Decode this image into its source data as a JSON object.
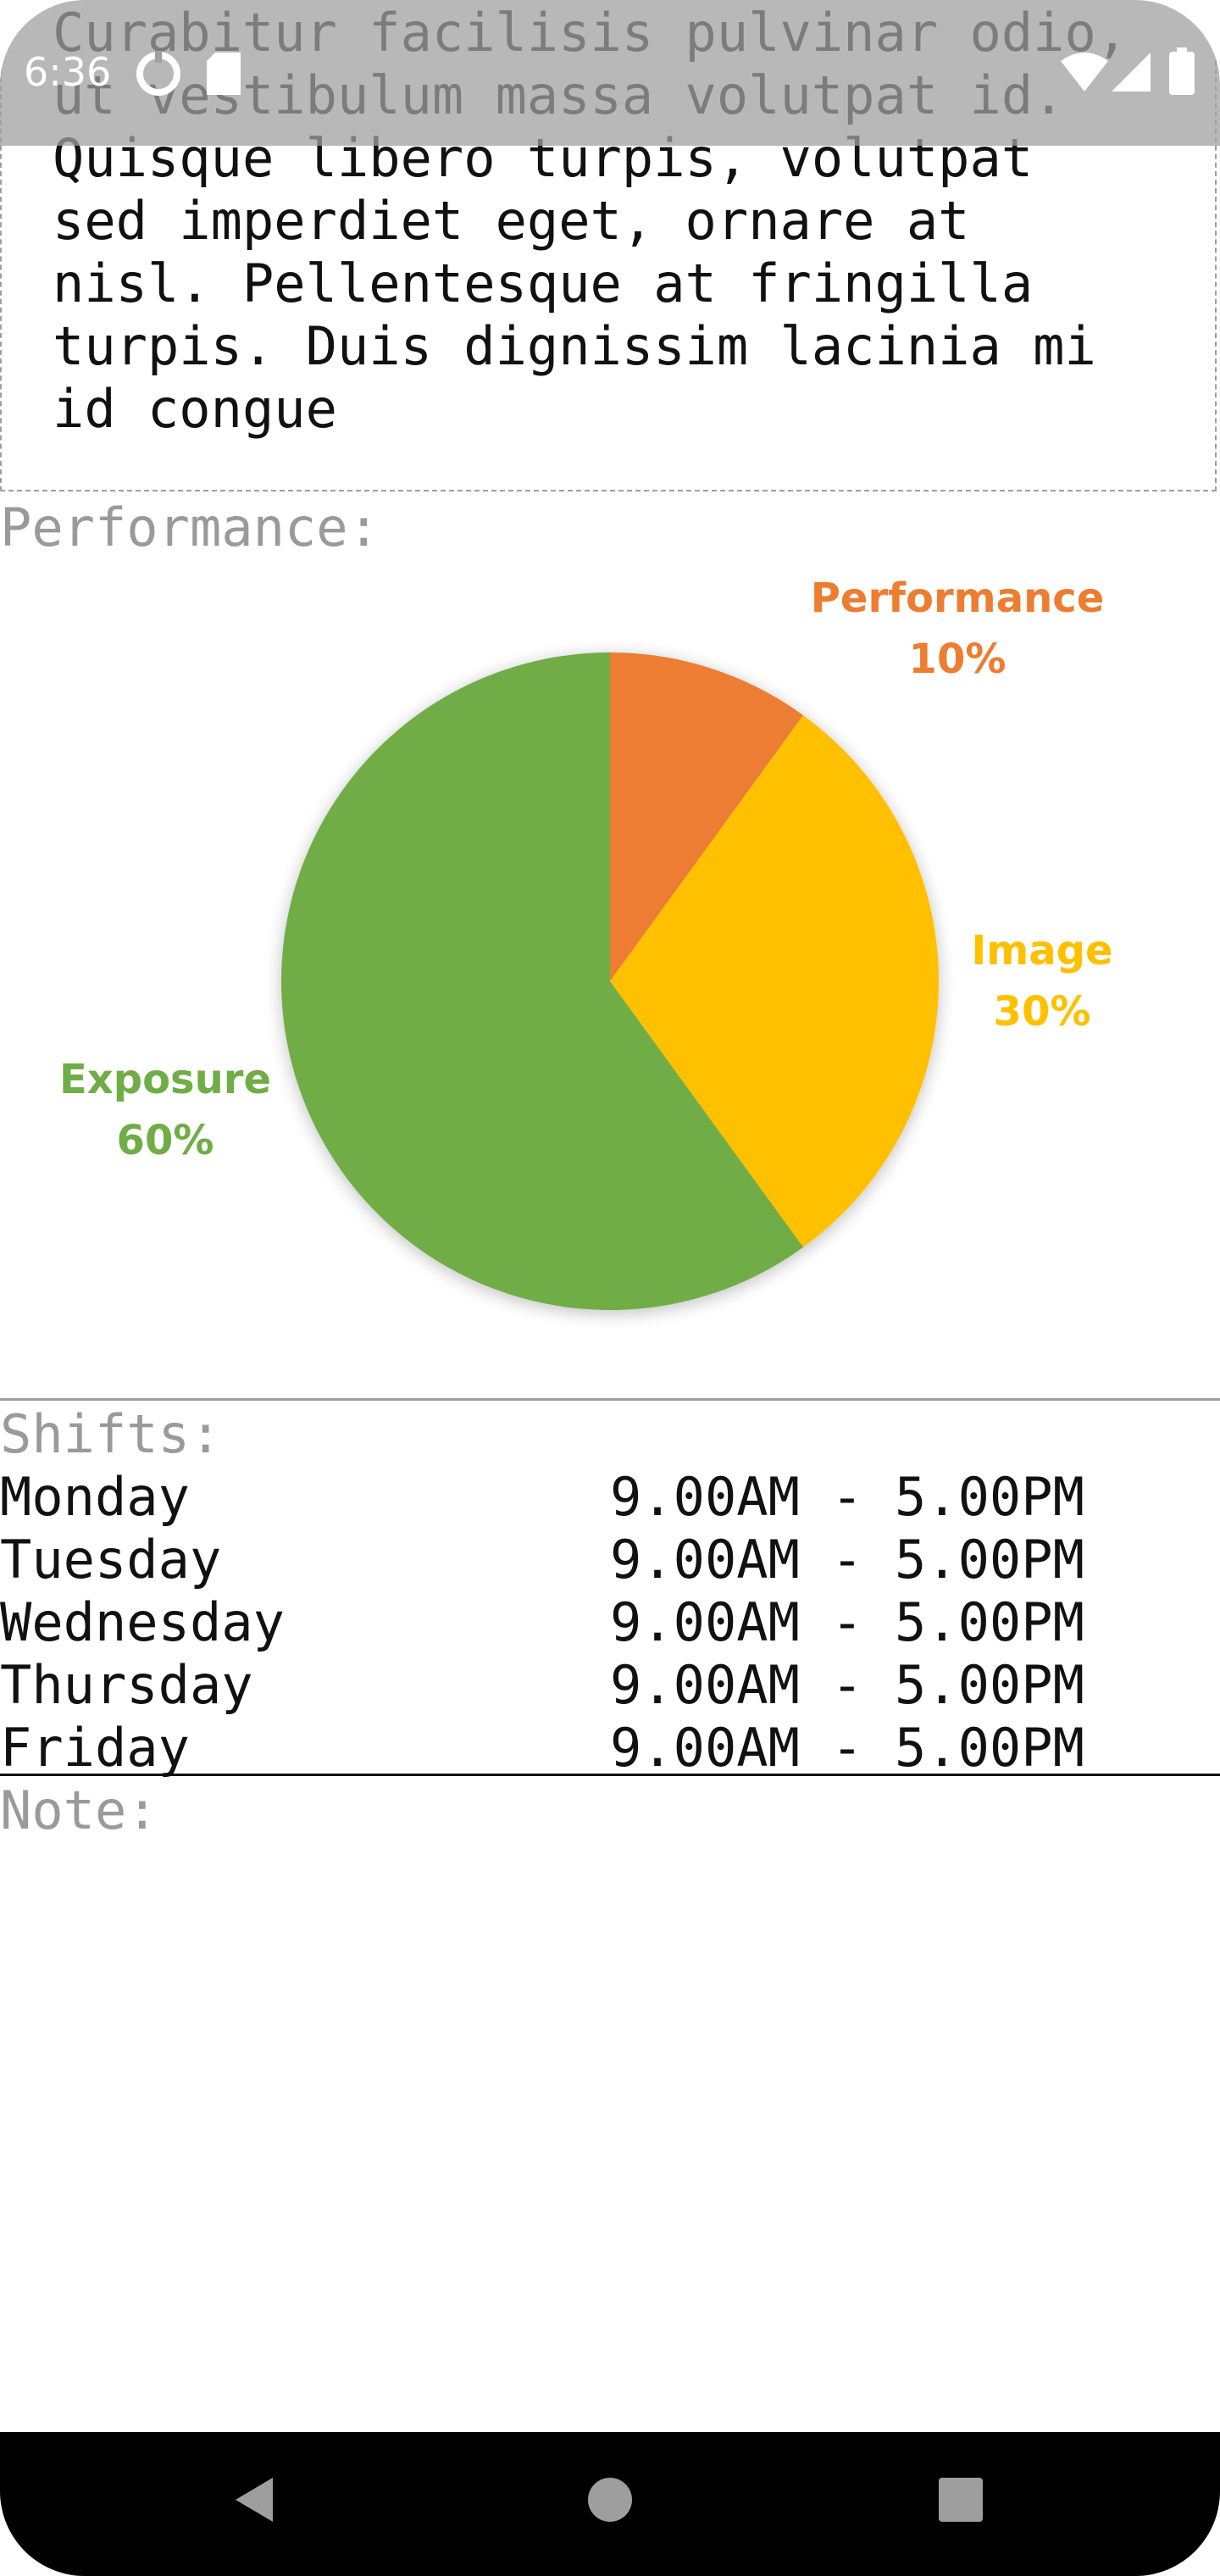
{
  "status_bar": {
    "time": "6:36",
    "icons": [
      "data-saver-icon",
      "sd-card-icon",
      "wifi-icon",
      "signal-icon",
      "battery-icon"
    ]
  },
  "description": {
    "text": "Curabitur facilisis pulvinar odio,\nut vestibulum massa volutpat id.\nQuisque libero turpis, volutpat\nsed imperdiet eget, ornare at\nnisl. Pellentesque at fringilla\nturpis. Duis dignissim lacinia mi\nid congue"
  },
  "performance": {
    "label": "Performance:"
  },
  "chart_data": {
    "type": "pie",
    "title": "",
    "slices": [
      {
        "name": "Performance",
        "value": 10,
        "label": "10%",
        "color": "#ED7D31"
      },
      {
        "name": "Image",
        "value": 30,
        "label": "30%",
        "color": "#FFC000"
      },
      {
        "name": "Exposure",
        "value": 60,
        "label": "60%",
        "color": "#70AD47"
      }
    ]
  },
  "shifts": {
    "label": "Shifts:",
    "rows": [
      {
        "day": "Monday",
        "time": "9.00AM - 5.00PM"
      },
      {
        "day": "Tuesday",
        "time": "9.00AM - 5.00PM"
      },
      {
        "day": "Wednesday",
        "time": "9.00AM - 5.00PM"
      },
      {
        "day": "Thursday",
        "time": "9.00AM - 5.00PM"
      },
      {
        "day": "Friday",
        "time": "9.00AM - 5.00PM"
      }
    ]
  },
  "note": {
    "label": "Note:"
  },
  "nav_bar": {
    "buttons": [
      "back-icon",
      "home-icon",
      "recents-icon"
    ]
  }
}
